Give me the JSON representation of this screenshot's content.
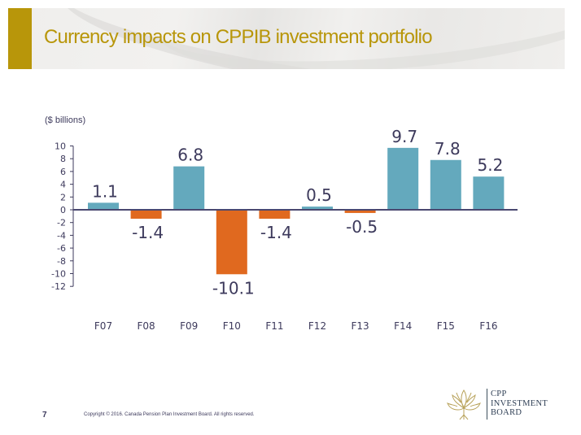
{
  "header": {
    "title": "Currency impacts on CPPIB investment portfolio"
  },
  "colors": {
    "title_gold": "#b8960a",
    "positive_bar": "#64a9bd",
    "negative_bar": "#e0691f",
    "text": "#3d3a5c"
  },
  "chart_data": {
    "type": "bar",
    "title": "",
    "units_label": "($ billions)",
    "xlabel": "",
    "ylabel": "",
    "categories": [
      "F07",
      "F08",
      "F09",
      "F10",
      "F11",
      "F12",
      "F13",
      "F14",
      "F15",
      "F16"
    ],
    "values": [
      1.1,
      -1.4,
      6.8,
      -10.1,
      -1.4,
      0.5,
      -0.5,
      9.7,
      7.8,
      5.2
    ],
    "data_labels": [
      "1.1",
      "-1.4",
      "6.8",
      "-10.1",
      "-1.4",
      "0.5",
      "-0.5",
      "9.7",
      "7.8",
      "5.2"
    ],
    "ylim": [
      -12,
      10
    ],
    "yticks": [
      10,
      8,
      6,
      4,
      2,
      0,
      -2,
      -4,
      -6,
      -8,
      -10,
      -12
    ],
    "ytick_labels": [
      "10",
      "8",
      "6",
      "4",
      "2",
      "0",
      "-2",
      "-4",
      "-6",
      "-8",
      "-10",
      "-12"
    ],
    "grid": false,
    "legend": "none",
    "color_rule": "positive values teal, negative values orange"
  },
  "footer": {
    "page_number": "7",
    "copyright": "Copyright © 2016. Canada Pension Plan Investment Board. All rights reserved."
  },
  "logo": {
    "icon": "maple-leaf-petals-icon",
    "lines": [
      "CPP",
      "INVESTMENT",
      "BOARD"
    ]
  }
}
